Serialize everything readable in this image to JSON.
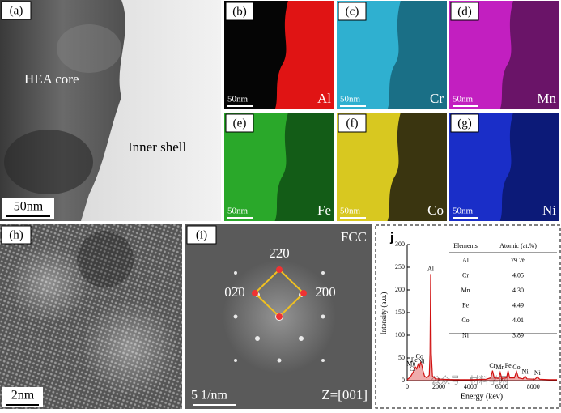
{
  "panel_a": {
    "label": "(a)",
    "core": "HEA core",
    "shell": "Inner shell",
    "scale_bar": "50nm"
  },
  "maps": [
    {
      "label": "(b)",
      "element": "Al",
      "scale_bar": "50nm",
      "colors": [
        "#050505",
        "#e01414"
      ]
    },
    {
      "label": "(c)",
      "element": "Cr",
      "scale_bar": "50nm",
      "colors": [
        "#2fb0d0",
        "#1a6f86"
      ]
    },
    {
      "label": "(d)",
      "element": "Mn",
      "scale_bar": "50nm",
      "colors": [
        "#c21fc0",
        "#6a1468"
      ]
    },
    {
      "label": "(e)",
      "element": "Fe",
      "scale_bar": "50nm",
      "colors": [
        "#2aa82a",
        "#135c17"
      ]
    },
    {
      "label": "(f)",
      "element": "Co",
      "scale_bar": "50nm",
      "colors": [
        "#d8c820",
        "#3a3510"
      ]
    },
    {
      "label": "(g)",
      "element": "Ni",
      "scale_bar": "50nm",
      "colors": [
        "#1a2ec8",
        "#0c1a78"
      ]
    }
  ],
  "panel_h": {
    "label": "(h)",
    "scale_bar": "2nm"
  },
  "panel_i": {
    "label": "(i)",
    "structure": "FCC",
    "spots": [
      "2̄2̄0",
      "02̄0",
      "2̄00"
    ],
    "scale_bar": "5 1/nm",
    "zone_axis": "Z=[001]"
  },
  "watermark": "公众号 · 材料学网",
  "chart_data": {
    "type": "line",
    "title": "j",
    "x_label": "Energy (kev)",
    "y_label": "Intensity (a.u.)",
    "color": "#d01010",
    "x": [
      0,
      200,
      400,
      520,
      600,
      700,
      780,
      850,
      930,
      1000,
      1100,
      1250,
      1400,
      1450,
      1487,
      1530,
      1600,
      1800,
      2200,
      3000,
      4000,
      5000,
      5300,
      5410,
      5520,
      5800,
      5900,
      6000,
      6300,
      6400,
      6500,
      6800,
      6930,
      7060,
      7350,
      7480,
      7600,
      8100,
      8260,
      8400,
      9000,
      9500
    ],
    "values": [
      2,
      8,
      20,
      30,
      26,
      36,
      30,
      40,
      34,
      22,
      10,
      6,
      12,
      60,
      235,
      60,
      10,
      4,
      3,
      2,
      2,
      3,
      6,
      22,
      6,
      5,
      18,
      5,
      6,
      22,
      6,
      6,
      20,
      6,
      4,
      10,
      4,
      3,
      8,
      3,
      2,
      2
    ],
    "xlim": [
      0,
      9500
    ],
    "ylim": [
      0,
      300
    ],
    "xticks": [
      0,
      2000,
      4000,
      6000,
      8000
    ],
    "yticks": [
      0,
      50,
      100,
      150,
      200,
      250,
      300
    ],
    "peak_labels": [
      {
        "label": "Al",
        "x": 1487,
        "y": 245
      },
      {
        "label": "Co",
        "x": 780,
        "y": 52
      },
      {
        "label": "Fe",
        "x": 450,
        "y": 44
      },
      {
        "label": "Ni",
        "x": 900,
        "y": 42
      },
      {
        "label": "Mn",
        "x": 250,
        "y": 36
      },
      {
        "label": "Cr",
        "x": 350,
        "y": 25
      },
      {
        "label": "Cr",
        "x": 5410,
        "y": 32
      },
      {
        "label": "Mn",
        "x": 5900,
        "y": 28
      },
      {
        "label": "Fe",
        "x": 6400,
        "y": 32
      },
      {
        "label": "Co",
        "x": 6930,
        "y": 28
      },
      {
        "label": "Ni",
        "x": 7480,
        "y": 18
      },
      {
        "label": "Ni",
        "x": 8260,
        "y": 16
      }
    ],
    "table": {
      "header": [
        "Elements",
        "Atomic (at.%)"
      ],
      "rows": [
        [
          "Al",
          "79.26"
        ],
        [
          "Cr",
          "4.05"
        ],
        [
          "Mn",
          "4.30"
        ],
        [
          "Fe",
          "4.49"
        ],
        [
          "Co",
          "4.01"
        ],
        [
          "Ni",
          "3.89"
        ]
      ]
    }
  }
}
